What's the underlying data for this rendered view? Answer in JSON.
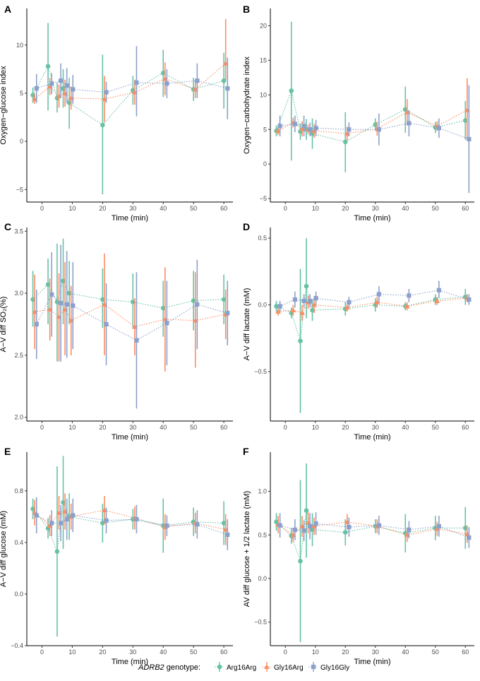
{
  "figure": {
    "legend": {
      "title_italic": "ADRB2",
      "title_rest": " genotype:",
      "entries": [
        "Arg16Arg",
        "Gly16Arg",
        "Gly16Gly"
      ]
    },
    "colors": {
      "Arg16Arg": "#66c2a5",
      "Gly16Arg": "#fc8d62",
      "Gly16Gly": "#8da0cb"
    },
    "markers": {
      "Arg16Arg": "circle",
      "Gly16Arg": "triangle",
      "Gly16Gly": "square"
    }
  },
  "chart_data": [
    {
      "panel": "A",
      "type": "line",
      "xlabel": "Time (min)",
      "ylabel": "Oxygen−glucose index",
      "ylim": [
        -6.3,
        13.8
      ],
      "xlim": [
        -5,
        63
      ],
      "yticks": [
        -5,
        0,
        5,
        10
      ],
      "ytick_labels": [
        "−5",
        "0",
        "5",
        "10"
      ],
      "xticks": [
        0,
        10,
        20,
        30,
        40,
        50,
        60
      ],
      "xtick_labels": [
        "0",
        "10",
        "20",
        "30",
        "40",
        "50",
        "60"
      ],
      "x": [
        -3,
        2,
        5,
        7,
        9,
        20,
        30,
        40,
        50,
        60
      ],
      "series": [
        {
          "name": "Arg16Arg",
          "y": [
            4.8,
            7.8,
            4.5,
            5.5,
            4.0,
            1.7,
            5.3,
            7.1,
            5.4,
            6.3
          ],
          "lo": [
            4.0,
            3.2,
            3.0,
            3.5,
            1.3,
            -5.5,
            3.8,
            4.6,
            4.2,
            3.4
          ],
          "hi": [
            5.6,
            12.3,
            6.1,
            7.5,
            6.6,
            9.0,
            6.8,
            9.5,
            6.6,
            9.2
          ]
        },
        {
          "name": "Gly16Arg",
          "y": [
            4.4,
            5.7,
            4.7,
            5.0,
            4.5,
            4.4,
            5.1,
            6.5,
            5.4,
            8.1
          ],
          "lo": [
            3.9,
            4.8,
            3.5,
            3.6,
            3.3,
            2.0,
            3.8,
            4.8,
            4.5,
            6.4
          ],
          "hi": [
            4.9,
            6.6,
            5.9,
            6.4,
            5.7,
            6.8,
            6.4,
            8.2,
            6.3,
            12.7
          ]
        },
        {
          "name": "Gly16Gly",
          "y": [
            5.5,
            6.0,
            6.3,
            5.8,
            5.4,
            5.1,
            6.1,
            6.0,
            6.3,
            5.5
          ],
          "lo": [
            4.0,
            4.9,
            4.5,
            4.0,
            3.9,
            4.0,
            2.6,
            4.5,
            4.5,
            2.3
          ],
          "hi": [
            7.0,
            7.1,
            8.1,
            7.6,
            6.9,
            6.2,
            9.9,
            7.5,
            8.1,
            8.7
          ]
        }
      ]
    },
    {
      "panel": "B",
      "type": "line",
      "xlabel": "Time (min)",
      "ylabel": "Oxygen−carbohydrate index",
      "ylim": [
        -5.5,
        22.5
      ],
      "xlim": [
        -5,
        63
      ],
      "yticks": [
        -5,
        0,
        5,
        10,
        15,
        20
      ],
      "ytick_labels": [
        "−5",
        "0",
        "5",
        "10",
        "15",
        "20"
      ],
      "xticks": [
        0,
        10,
        20,
        30,
        40,
        50,
        60
      ],
      "xtick_labels": [
        "0",
        "10",
        "20",
        "30",
        "40",
        "50",
        "60"
      ],
      "x": [
        -3,
        2,
        5,
        7,
        9,
        20,
        30,
        40,
        50,
        60
      ],
      "series": [
        {
          "name": "Arg16Arg",
          "y": [
            4.8,
            10.6,
            4.7,
            5.0,
            4.4,
            3.2,
            5.7,
            7.9,
            5.3,
            6.3
          ],
          "lo": [
            4.0,
            0.5,
            3.5,
            3.5,
            2.2,
            -1.2,
            4.8,
            4.5,
            4.5,
            3.5
          ],
          "hi": [
            5.6,
            20.6,
            5.9,
            6.5,
            6.6,
            7.5,
            6.6,
            11.2,
            6.1,
            9.1
          ]
        },
        {
          "name": "Gly16Arg",
          "y": [
            4.8,
            6.0,
            5.1,
            5.0,
            4.8,
            4.4,
            5.1,
            7.5,
            5.5,
            7.8
          ],
          "lo": [
            4.2,
            5.3,
            4.0,
            4.3,
            3.8,
            3.4,
            4.1,
            5.6,
            4.8,
            3.6
          ],
          "hi": [
            5.4,
            6.7,
            6.2,
            5.7,
            5.8,
            5.4,
            6.1,
            9.4,
            6.2,
            12.4
          ]
        },
        {
          "name": "Gly16Gly",
          "y": [
            5.5,
            5.8,
            5.5,
            5.0,
            5.2,
            5.0,
            5.0,
            5.9,
            5.2,
            3.6
          ],
          "lo": [
            4.0,
            4.6,
            4.0,
            4.0,
            4.0,
            4.0,
            2.7,
            4.0,
            3.8,
            -4.2
          ],
          "hi": [
            7.0,
            7.0,
            7.0,
            6.0,
            6.4,
            6.0,
            7.3,
            7.8,
            6.6,
            11.4
          ]
        }
      ]
    },
    {
      "panel": "C",
      "type": "line",
      "xlabel": "Time (min)",
      "ylabel": "A−V diff SO₂(%)",
      "ylim": [
        1.97,
        3.53
      ],
      "xlim": [
        -5,
        63
      ],
      "yticks": [
        2.0,
        2.5,
        3.0,
        3.5
      ],
      "ytick_labels": [
        "2.0",
        "2.5",
        "3.0",
        "3.5"
      ],
      "xticks": [
        0,
        10,
        20,
        30,
        40,
        50,
        60
      ],
      "xtick_labels": [
        "0",
        "10",
        "20",
        "30",
        "40",
        "50",
        "60"
      ],
      "x": [
        -3,
        2,
        5,
        7,
        9,
        20,
        30,
        40,
        50,
        60
      ],
      "series": [
        {
          "name": "Arg16Arg",
          "y": [
            2.95,
            3.07,
            2.93,
            3.1,
            3.0,
            2.95,
            2.93,
            2.88,
            2.94,
            2.95
          ],
          "lo": [
            2.73,
            2.75,
            2.45,
            2.75,
            2.75,
            2.72,
            2.72,
            2.65,
            2.7,
            2.75
          ],
          "hi": [
            3.18,
            3.28,
            3.4,
            3.44,
            3.26,
            3.2,
            3.16,
            3.1,
            3.18,
            3.15
          ]
        },
        {
          "name": "Gly16Arg",
          "y": [
            2.85,
            2.87,
            2.81,
            2.87,
            2.78,
            2.91,
            2.73,
            2.79,
            2.78,
            2.83
          ],
          "lo": [
            2.55,
            2.62,
            2.45,
            2.5,
            2.5,
            2.5,
            2.5,
            2.37,
            2.4,
            2.63
          ],
          "hi": [
            3.15,
            3.12,
            3.16,
            3.25,
            3.06,
            3.32,
            2.96,
            3.21,
            3.17,
            3.03
          ]
        },
        {
          "name": "Gly16Gly",
          "y": [
            2.75,
            2.99,
            2.92,
            2.91,
            2.9,
            2.75,
            2.62,
            2.76,
            2.91,
            2.84
          ],
          "lo": [
            2.47,
            2.65,
            2.45,
            2.48,
            2.55,
            2.42,
            2.07,
            2.42,
            2.55,
            2.58
          ],
          "hi": [
            3.03,
            3.33,
            3.39,
            3.34,
            3.25,
            3.08,
            3.17,
            3.1,
            3.27,
            3.1
          ]
        }
      ]
    },
    {
      "panel": "D",
      "type": "line",
      "xlabel": "Time (min)",
      "ylabel": "A−V diff lactate (mM)",
      "ylim": [
        -0.87,
        0.58
      ],
      "xlim": [
        -5,
        63
      ],
      "yticks": [
        -0.5,
        0.0,
        0.5
      ],
      "ytick_labels": [
        "−0.5",
        "0.0",
        "0.5"
      ],
      "xticks": [
        0,
        10,
        20,
        30,
        40,
        50,
        60
      ],
      "xtick_labels": [
        "0",
        "10",
        "20",
        "30",
        "40",
        "50",
        "60"
      ],
      "x": [
        -3,
        2,
        5,
        7,
        9,
        20,
        30,
        40,
        50,
        60
      ],
      "series": [
        {
          "name": "Arg16Arg",
          "y": [
            -0.01,
            -0.06,
            -0.27,
            0.14,
            -0.04,
            -0.03,
            0.0,
            -0.01,
            0.04,
            0.06
          ],
          "lo": [
            -0.05,
            -0.1,
            -0.81,
            -0.1,
            -0.12,
            -0.08,
            -0.05,
            -0.04,
            0.0,
            0.0
          ],
          "hi": [
            0.03,
            -0.02,
            0.27,
            0.5,
            0.04,
            0.02,
            0.05,
            0.02,
            0.08,
            0.12
          ]
        },
        {
          "name": "Gly16Arg",
          "y": [
            -0.05,
            -0.04,
            -0.06,
            0.02,
            0.0,
            -0.02,
            0.02,
            -0.01,
            0.03,
            0.05
          ],
          "lo": [
            -0.08,
            -0.08,
            -0.12,
            -0.03,
            -0.06,
            -0.05,
            -0.02,
            -0.04,
            0.0,
            0.02
          ],
          "hi": [
            -0.02,
            0.0,
            0.0,
            0.07,
            0.06,
            0.01,
            0.06,
            0.02,
            0.06,
            0.08
          ]
        },
        {
          "name": "Gly16Gly",
          "y": [
            -0.01,
            0.04,
            0.03,
            0.03,
            0.05,
            0.02,
            0.08,
            0.07,
            0.11,
            0.04
          ],
          "lo": [
            -0.05,
            -0.02,
            -0.02,
            -0.02,
            0.0,
            -0.02,
            0.02,
            0.02,
            0.05,
            0.0
          ],
          "hi": [
            0.03,
            0.1,
            0.08,
            0.08,
            0.1,
            0.06,
            0.14,
            0.12,
            0.18,
            0.08
          ]
        }
      ]
    },
    {
      "panel": "E",
      "type": "line",
      "xlabel": "Time (min)",
      "ylabel": "A−V diff glucose (mM)",
      "ylim": [
        -0.4,
        1.1
      ],
      "xlim": [
        -5,
        63
      ],
      "yticks": [
        -0.4,
        0.0,
        0.4,
        0.8
      ],
      "ytick_labels": [
        "−0.4",
        "0.0",
        "0.4",
        "0.8"
      ],
      "xticks": [
        0,
        10,
        20,
        30,
        40,
        50,
        60
      ],
      "xtick_labels": [
        "0",
        "10",
        "20",
        "30",
        "40",
        "50",
        "60"
      ],
      "x": [
        -3,
        2,
        5,
        7,
        9,
        20,
        30,
        40,
        50,
        60
      ],
      "series": [
        {
          "name": "Arg16Arg",
          "y": [
            0.66,
            0.51,
            0.33,
            0.71,
            0.6,
            0.55,
            0.58,
            0.53,
            0.56,
            0.55
          ],
          "lo": [
            0.58,
            0.43,
            -0.33,
            0.35,
            0.42,
            0.4,
            0.5,
            0.32,
            0.45,
            0.38
          ],
          "hi": [
            0.74,
            0.59,
            0.99,
            1.07,
            0.78,
            0.7,
            0.66,
            0.74,
            0.67,
            0.72
          ]
        },
        {
          "name": "Gly16Arg",
          "y": [
            0.63,
            0.53,
            0.63,
            0.64,
            0.6,
            0.65,
            0.59,
            0.52,
            0.55,
            0.5
          ],
          "lo": [
            0.53,
            0.45,
            0.5,
            0.5,
            0.5,
            0.54,
            0.5,
            0.42,
            0.47,
            0.38
          ],
          "hi": [
            0.73,
            0.61,
            0.76,
            0.78,
            0.7,
            0.76,
            0.68,
            0.62,
            0.63,
            0.62
          ]
        },
        {
          "name": "Gly16Gly",
          "y": [
            0.61,
            0.55,
            0.55,
            0.58,
            0.61,
            0.57,
            0.58,
            0.53,
            0.54,
            0.46
          ],
          "lo": [
            0.47,
            0.45,
            0.41,
            0.42,
            0.48,
            0.47,
            0.47,
            0.45,
            0.43,
            0.34
          ],
          "hi": [
            0.75,
            0.65,
            0.69,
            0.74,
            0.74,
            0.67,
            0.69,
            0.61,
            0.65,
            0.58
          ]
        }
      ]
    },
    {
      "panel": "F",
      "type": "line",
      "xlabel": "Time (min)",
      "ylabel": "AV diff glucose + 1/2 lactate (mM)",
      "ylim": [
        -0.77,
        1.45
      ],
      "xlim": [
        -5,
        63
      ],
      "yticks": [
        -0.5,
        0.0,
        0.5,
        1.0
      ],
      "ytick_labels": [
        "−0.5",
        "0.0",
        "0.5",
        "1.0"
      ],
      "xticks": [
        0,
        10,
        20,
        30,
        40,
        50,
        60
      ],
      "xtick_labels": [
        "0",
        "10",
        "20",
        "30",
        "40",
        "50",
        "60"
      ],
      "x": [
        -3,
        2,
        5,
        7,
        9,
        20,
        30,
        40,
        50,
        60
      ],
      "series": [
        {
          "name": "Arg16Arg",
          "y": [
            0.65,
            0.49,
            0.2,
            0.78,
            0.56,
            0.53,
            0.6,
            0.52,
            0.58,
            0.58
          ],
          "lo": [
            0.55,
            0.4,
            -0.73,
            0.24,
            0.37,
            0.38,
            0.52,
            0.3,
            0.44,
            0.34
          ],
          "hi": [
            0.75,
            0.58,
            1.13,
            1.32,
            0.75,
            0.68,
            0.68,
            0.74,
            0.72,
            0.82
          ]
        },
        {
          "name": "Gly16Arg",
          "y": [
            0.62,
            0.5,
            0.6,
            0.64,
            0.6,
            0.65,
            0.6,
            0.5,
            0.57,
            0.51
          ],
          "lo": [
            0.52,
            0.42,
            0.48,
            0.52,
            0.5,
            0.56,
            0.52,
            0.42,
            0.49,
            0.41
          ],
          "hi": [
            0.72,
            0.58,
            0.72,
            0.76,
            0.7,
            0.74,
            0.68,
            0.58,
            0.65,
            0.61
          ]
        },
        {
          "name": "Gly16Gly",
          "y": [
            0.61,
            0.56,
            0.55,
            0.6,
            0.63,
            0.59,
            0.61,
            0.56,
            0.6,
            0.47
          ],
          "lo": [
            0.47,
            0.44,
            0.43,
            0.45,
            0.5,
            0.48,
            0.5,
            0.46,
            0.48,
            0.35
          ],
          "hi": [
            0.75,
            0.68,
            0.67,
            0.75,
            0.76,
            0.7,
            0.72,
            0.66,
            0.72,
            0.59
          ]
        }
      ]
    }
  ]
}
